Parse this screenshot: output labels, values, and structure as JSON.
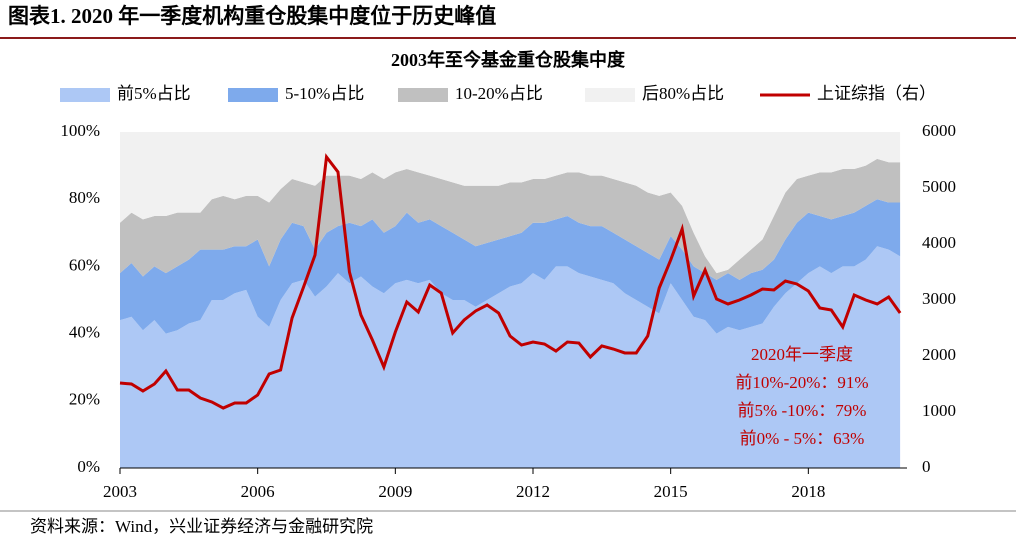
{
  "header": "图表1.  2020 年一季度机构重仓股集中度位于历史峰值",
  "source": "资料来源：Wind，兴业证券经济与金融研究院",
  "chart_data": {
    "type": "area",
    "title": "2003年至今基金重仓股集中度",
    "x": [
      2003,
      2003.25,
      2003.5,
      2003.75,
      2004,
      2004.25,
      2004.5,
      2004.75,
      2005,
      2005.25,
      2005.5,
      2005.75,
      2006,
      2006.25,
      2006.5,
      2006.75,
      2007,
      2007.25,
      2007.5,
      2007.75,
      2008,
      2008.25,
      2008.5,
      2008.75,
      2009,
      2009.25,
      2009.5,
      2009.75,
      2010,
      2010.25,
      2010.5,
      2010.75,
      2011,
      2011.25,
      2011.5,
      2011.75,
      2012,
      2012.25,
      2012.5,
      2012.75,
      2013,
      2013.25,
      2013.5,
      2013.75,
      2014,
      2014.25,
      2014.5,
      2014.75,
      2015,
      2015.25,
      2015.5,
      2015.75,
      2016,
      2016.25,
      2016.5,
      2016.75,
      2017,
      2017.25,
      2017.5,
      2017.75,
      2018,
      2018.25,
      2018.5,
      2018.75,
      2019,
      2019.25,
      2019.5,
      2019.75,
      2020
    ],
    "series": [
      {
        "name": "前5%占比",
        "color": "#adc8f5",
        "values": [
          44,
          45,
          41,
          44,
          40,
          41,
          43,
          44,
          50,
          50,
          52,
          53,
          45,
          42,
          50,
          55,
          56,
          51,
          54,
          58,
          55,
          57,
          54,
          52,
          55,
          56,
          55,
          56,
          52,
          50,
          50,
          48,
          50,
          52,
          54,
          55,
          58,
          56,
          60,
          60,
          58,
          57,
          56,
          55,
          52,
          50,
          48,
          46,
          55,
          50,
          45,
          44,
          40,
          42,
          41,
          42,
          43,
          48,
          52,
          55,
          58,
          60,
          58,
          60,
          60,
          62,
          66,
          65,
          63
        ]
      },
      {
        "name": "5-10%占比",
        "color": "#7eaaec",
        "values": [
          14,
          16,
          16,
          16,
          18,
          19,
          19,
          21,
          15,
          15,
          14,
          13,
          23,
          18,
          18,
          18,
          16,
          14,
          16,
          14,
          18,
          15,
          20,
          18,
          17,
          20,
          18,
          18,
          20,
          20,
          18,
          18,
          17,
          16,
          15,
          15,
          15,
          17,
          14,
          15,
          15,
          15,
          16,
          15,
          16,
          16,
          16,
          16,
          14,
          15,
          15,
          14,
          16,
          16,
          15,
          16,
          16,
          14,
          16,
          18,
          18,
          15,
          16,
          15,
          16,
          16,
          14,
          14,
          16
        ]
      },
      {
        "name": "10-20%占比",
        "color": "#c0c0c0",
        "values": [
          15,
          15,
          17,
          15,
          17,
          16,
          14,
          11,
          15,
          16,
          14,
          15,
          13,
          19,
          15,
          13,
          13,
          19,
          17,
          15,
          14,
          14,
          14,
          16,
          16,
          13,
          15,
          13,
          14,
          15,
          16,
          18,
          17,
          16,
          16,
          15,
          13,
          13,
          13,
          13,
          15,
          15,
          15,
          16,
          17,
          18,
          18,
          19,
          13,
          13,
          10,
          5,
          2,
          1,
          6,
          7,
          9,
          13,
          14,
          13,
          11,
          13,
          14,
          14,
          13,
          12,
          12,
          12,
          12
        ]
      },
      {
        "name": "后80%占比",
        "color": "#f1f1f1",
        "values": [
          27,
          24,
          26,
          25,
          25,
          24,
          24,
          24,
          20,
          19,
          20,
          19,
          19,
          21,
          17,
          14,
          15,
          16,
          13,
          13,
          13,
          14,
          12,
          14,
          12,
          11,
          12,
          13,
          14,
          15,
          16,
          16,
          16,
          16,
          15,
          15,
          14,
          14,
          13,
          12,
          12,
          13,
          13,
          14,
          15,
          16,
          18,
          19,
          18,
          22,
          30,
          37,
          42,
          41,
          38,
          35,
          32,
          25,
          18,
          14,
          13,
          12,
          12,
          11,
          11,
          10,
          8,
          9,
          9
        ]
      },
      {
        "name": "上证综指（右）",
        "color": "#c00000",
        "type": "line",
        "axis": "y2",
        "values": [
          1518,
          1500,
          1375,
          1500,
          1732,
          1393,
          1393,
          1250,
          1179,
          1071,
          1161,
          1161,
          1304,
          1679,
          1750,
          2679,
          3232,
          3804,
          5554,
          5286,
          3500,
          2732,
          2286,
          1804,
          2429,
          2964,
          2786,
          3268,
          3125,
          2411,
          2643,
          2804,
          2911,
          2768,
          2357,
          2196,
          2250,
          2214,
          2089,
          2250,
          2232,
          1982,
          2179,
          2125,
          2054,
          2054,
          2357,
          3214,
          3714,
          4268,
          3071,
          3536,
          3018,
          2929,
          3000,
          3089,
          3196,
          3179,
          3339,
          3286,
          3161,
          2857,
          2821,
          2518,
          3089,
          3000,
          2929,
          3054,
          2768
        ]
      }
    ],
    "xlim": [
      2003,
      2020.15
    ],
    "xticks": [
      2003,
      2006,
      2009,
      2012,
      2015,
      2018
    ],
    "ylim": [
      0,
      100
    ],
    "yticks": [
      {
        "value": 0,
        "label": "0%"
      },
      {
        "value": 20,
        "label": "20%"
      },
      {
        "value": 40,
        "label": "40%"
      },
      {
        "value": 60,
        "label": "60%"
      },
      {
        "value": 80,
        "label": "80%"
      },
      {
        "value": 100,
        "label": "100%"
      }
    ],
    "y2lim": [
      0,
      6000
    ],
    "y2ticks": [
      0,
      1000,
      2000,
      3000,
      4000,
      5000,
      6000
    ],
    "annotation": [
      "2020年一季度",
      "前10%-20%：91%",
      "前5% -10%：79%",
      "前0% - 5%：63%"
    ]
  }
}
